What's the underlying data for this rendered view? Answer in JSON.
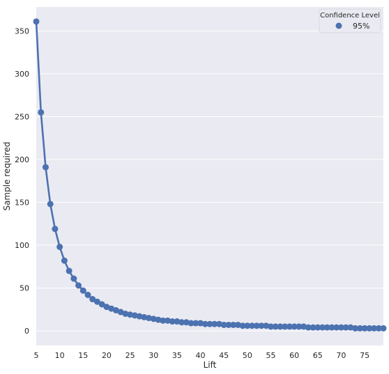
{
  "chart_data": {
    "type": "line",
    "title": "",
    "xlabel": "Lift",
    "ylabel": "Sample required",
    "x": [
      5,
      6,
      7,
      8,
      9,
      10,
      11,
      12,
      13,
      14,
      15,
      16,
      17,
      18,
      19,
      20,
      21,
      22,
      23,
      24,
      25,
      26,
      27,
      28,
      29,
      30,
      31,
      32,
      33,
      34,
      35,
      36,
      37,
      38,
      39,
      40,
      41,
      42,
      43,
      44,
      45,
      46,
      47,
      48,
      49,
      50,
      51,
      52,
      53,
      54,
      55,
      56,
      57,
      58,
      59,
      60,
      61,
      62,
      63,
      64,
      65,
      66,
      67,
      68,
      69,
      70,
      71,
      72,
      73,
      74,
      75,
      76,
      77,
      78,
      79
    ],
    "series": [
      {
        "name": "95%",
        "values": [
          361,
          255,
          191,
          148,
          119,
          98,
          82,
          70,
          61,
          53,
          47,
          42,
          37,
          34,
          31,
          28,
          26,
          24,
          22,
          20,
          19,
          18,
          17,
          16,
          15,
          14,
          13,
          12,
          12,
          11,
          11,
          10,
          10,
          9,
          9,
          9,
          8,
          8,
          8,
          8,
          7,
          7,
          7,
          7,
          6,
          6,
          6,
          6,
          6,
          6,
          5,
          5,
          5,
          5,
          5,
          5,
          5,
          5,
          4,
          4,
          4,
          4,
          4,
          4,
          4,
          4,
          4,
          4,
          3,
          3,
          3,
          3,
          3,
          3,
          3
        ]
      }
    ],
    "xticks": [
      5,
      10,
      15,
      20,
      25,
      30,
      35,
      40,
      45,
      50,
      55,
      60,
      65,
      70,
      75
    ],
    "yticks": [
      0,
      50,
      100,
      150,
      200,
      250,
      300,
      350
    ],
    "xlim": [
      5,
      79
    ],
    "ylim": [
      -17,
      378
    ],
    "grid": true,
    "legend": {
      "title": "Confidence Level",
      "placement": "top-right"
    },
    "colors": {
      "series": "#4c72b0",
      "background": "#eaeaf2",
      "grid": "#ffffff"
    }
  }
}
